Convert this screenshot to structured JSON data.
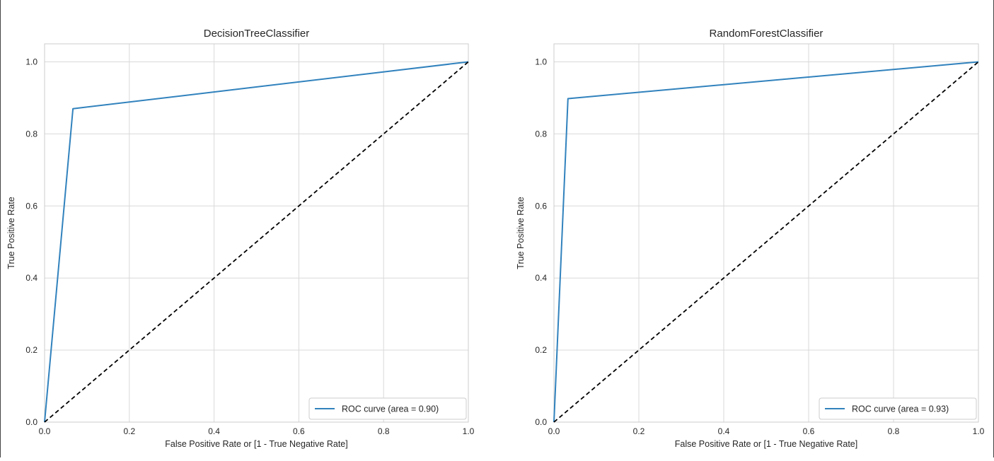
{
  "chart_data": [
    {
      "type": "line",
      "title": "DecisionTreeClassifier",
      "xlabel": "False Positive Rate or [1 - True Negative Rate]",
      "ylabel": "True Positive Rate",
      "xlim": [
        0.0,
        1.0
      ],
      "ylim": [
        0.0,
        1.05
      ],
      "xticks": [
        "0.0",
        "0.2",
        "0.4",
        "0.6",
        "0.8",
        "1.0"
      ],
      "yticks": [
        "0.0",
        "0.2",
        "0.4",
        "0.6",
        "0.8",
        "1.0"
      ],
      "grid": true,
      "legend_position": "lower-right",
      "series": [
        {
          "name": "ROC curve (area = 0.90)",
          "color": "#3182bd",
          "style": "solid",
          "x": [
            0.0,
            0.067,
            1.0
          ],
          "y": [
            0.0,
            0.87,
            1.0
          ]
        },
        {
          "color": "#000000",
          "style": "dashed",
          "x": [
            0.0,
            1.0
          ],
          "y": [
            0.0,
            1.0
          ]
        }
      ]
    },
    {
      "type": "line",
      "title": "RandomForestClassifier",
      "xlabel": "False Positive Rate or [1 - True Negative Rate]",
      "ylabel": "True Positive Rate",
      "xlim": [
        0.0,
        1.0
      ],
      "ylim": [
        0.0,
        1.05
      ],
      "xticks": [
        "0.0",
        "0.2",
        "0.4",
        "0.6",
        "0.8",
        "1.0"
      ],
      "yticks": [
        "0.0",
        "0.2",
        "0.4",
        "0.6",
        "0.8",
        "1.0"
      ],
      "grid": true,
      "legend_position": "lower-right",
      "series": [
        {
          "name": "ROC curve (area = 0.93)",
          "color": "#3182bd",
          "style": "solid",
          "x": [
            0.0,
            0.033,
            1.0
          ],
          "y": [
            0.0,
            0.898,
            1.0
          ]
        },
        {
          "color": "#000000",
          "style": "dashed",
          "x": [
            0.0,
            1.0
          ],
          "y": [
            0.0,
            1.0
          ]
        }
      ]
    }
  ]
}
